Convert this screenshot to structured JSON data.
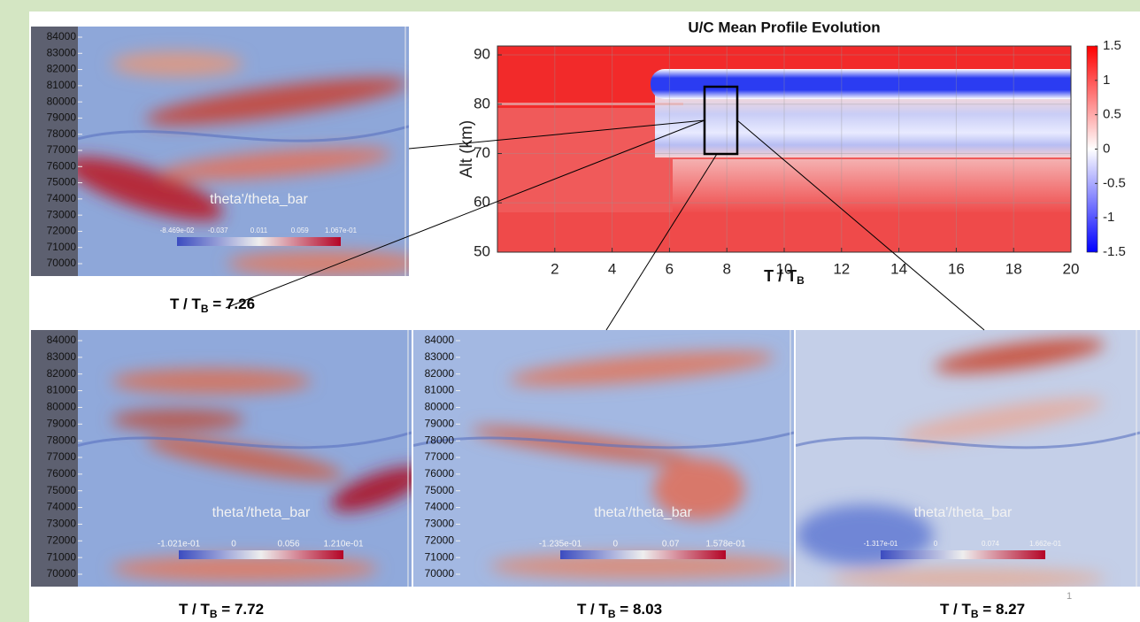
{
  "chart_data": {
    "type": "heatmap",
    "title": "U/C Mean Profile Evolution",
    "ylabel": "Alt (km)",
    "xlabel": "T / T",
    "xlabel_subscript": "B",
    "xlim": [
      0,
      20
    ],
    "ylim": [
      50,
      91.8
    ],
    "xticks": [
      2,
      4,
      6,
      8,
      10,
      12,
      14,
      16,
      18,
      20
    ],
    "yticks": [
      50,
      60,
      70,
      80,
      90
    ],
    "grid": true,
    "colorbar": {
      "lim": [
        -1.5,
        1.5
      ],
      "ticks": [
        1.5,
        1,
        0.5,
        0,
        -0.5,
        -1,
        -1.5
      ]
    }
  },
  "panels": [
    {
      "y_ticks": [
        84000,
        83000,
        82000,
        81000,
        80000,
        79000,
        78000,
        77000,
        76000,
        75000,
        74000,
        73000,
        72000,
        71000,
        70000
      ],
      "label": "theta'/theta_bar",
      "colorbar_labels": [
        "-8.469e-02",
        "-0.037",
        "0.011",
        "0.059",
        "1.067e-01"
      ],
      "caption": {
        "text": "T / T",
        "subscript": "B",
        "suffix": " = 7.26"
      }
    },
    {
      "y_ticks": [
        84000,
        83000,
        82000,
        81000,
        80000,
        79000,
        78000,
        77000,
        76000,
        75000,
        74000,
        73000,
        72000,
        71000,
        70000
      ],
      "label": "theta'/theta_bar",
      "colorbar_labels": [
        "-1.021e-01",
        "0",
        "0.056",
        "1.210e-01"
      ],
      "caption": {
        "text": "T / T",
        "subscript": "B",
        "suffix": " = 7.72"
      }
    },
    {
      "y_ticks": [
        84000,
        83000,
        82000,
        81000,
        80000,
        79000,
        78000,
        77000,
        76000,
        75000,
        74000,
        73000,
        72000,
        71000,
        70000
      ],
      "label": "theta'/theta_bar",
      "colorbar_labels": [
        "-1.235e-01",
        "0",
        "0.07",
        "1.578e-01"
      ],
      "caption": {
        "text": "T / T",
        "subscript": "B",
        "suffix": " = 8.03"
      }
    },
    {
      "label": "theta'/theta_bar",
      "colorbar_labels": [
        "-1.317e-01",
        "0",
        "0.074",
        "1.662e-01"
      ],
      "caption": {
        "text": "T / T",
        "subscript": "B",
        "suffix": " = 8.27"
      }
    }
  ],
  "slide_number": "1"
}
